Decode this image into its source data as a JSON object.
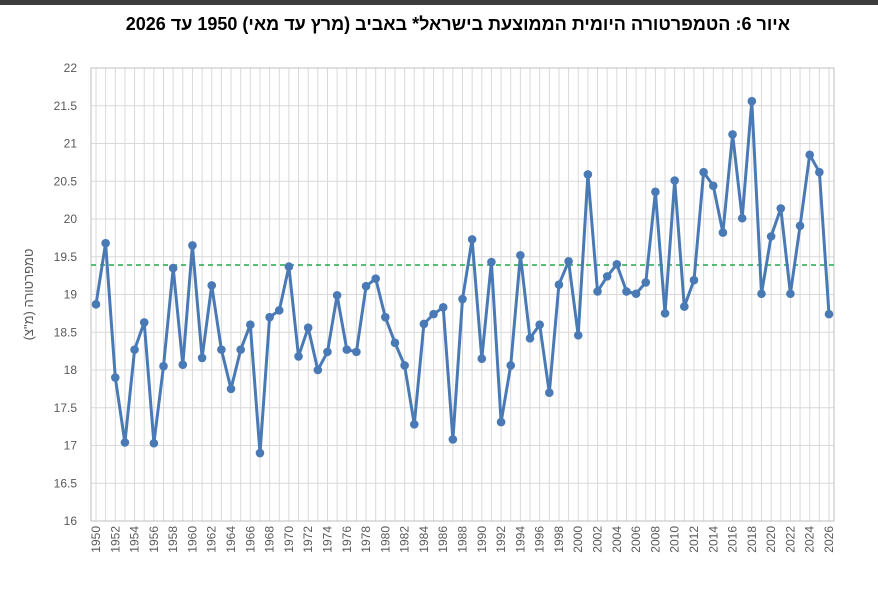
{
  "chart_data": {
    "type": "line",
    "title": "איור 6: הטמפרטורה היומית הממוצעת בישראל* באביב (מרץ עד מאי) 1950 עד 2026",
    "ylabel": "טמפרטורה (מ\"צ)",
    "xlabel": "",
    "ylim": [
      16,
      22
    ],
    "y_ticks": [
      "22",
      "21.5",
      "21",
      "20.5",
      "20",
      "19.5",
      "19",
      "18.5",
      "18",
      "17.5",
      "17",
      "16.5",
      "16"
    ],
    "x_tick_labels": [
      "1950",
      "1952",
      "1954",
      "1956",
      "1958",
      "1960",
      "1962",
      "1964",
      "1966",
      "1968",
      "1970",
      "1972",
      "1974",
      "1976",
      "1978",
      "1980",
      "1982",
      "1984",
      "1986",
      "1988",
      "1990",
      "1992",
      "1994",
      "1996",
      "1998",
      "2000",
      "2002",
      "2004",
      "2006",
      "2008",
      "2010",
      "2012",
      "2014",
      "2016",
      "2018",
      "2020",
      "2022",
      "2024",
      "2026"
    ],
    "grid": true,
    "series": [
      {
        "color": "#4a7ab5",
        "x": [
          1950,
          1951,
          1952,
          1953,
          1954,
          1955,
          1956,
          1957,
          1958,
          1959,
          1960,
          1961,
          1962,
          1963,
          1964,
          1965,
          1966,
          1967,
          1968,
          1969,
          1970,
          1971,
          1972,
          1973,
          1974,
          1975,
          1976,
          1977,
          1978,
          1979,
          1980,
          1981,
          1982,
          1983,
          1984,
          1985,
          1986,
          1987,
          1988,
          1989,
          1990,
          1991,
          1992,
          1993,
          1994,
          1995,
          1996,
          1997,
          1998,
          1999,
          2000,
          2001,
          2002,
          2003,
          2004,
          2005,
          2006,
          2007,
          2008,
          2009,
          2010,
          2011,
          2012,
          2013,
          2014,
          2015,
          2016,
          2017,
          2018,
          2019,
          2020,
          2021,
          2022,
          2023,
          2024,
          2025,
          2026
        ],
        "values": [
          18.87,
          19.68,
          17.9,
          17.04,
          18.27,
          18.63,
          17.03,
          18.05,
          19.35,
          18.07,
          19.65,
          18.16,
          19.12,
          18.27,
          17.75,
          18.27,
          18.6,
          16.9,
          18.7,
          18.79,
          19.37,
          18.18,
          18.56,
          18.0,
          18.24,
          18.99,
          18.27,
          18.24,
          19.11,
          19.21,
          18.7,
          18.36,
          18.06,
          17.28,
          18.61,
          18.74,
          18.83,
          17.08,
          18.94,
          19.73,
          18.15,
          19.43,
          17.31,
          18.06,
          19.52,
          18.42,
          18.6,
          17.7,
          19.13,
          19.44,
          18.46,
          20.59,
          19.04,
          19.24,
          19.4,
          19.04,
          19.01,
          19.16,
          20.36,
          18.75,
          20.51,
          18.84,
          19.19,
          20.62,
          20.44,
          19.82,
          21.12,
          20.01,
          21.56,
          19.01,
          19.77,
          20.14,
          19.01,
          19.91,
          20.85,
          20.62,
          18.74
        ]
      }
    ],
    "reference_line": {
      "value": 19.39,
      "color": "#22a84a",
      "style": "dashed"
    }
  }
}
